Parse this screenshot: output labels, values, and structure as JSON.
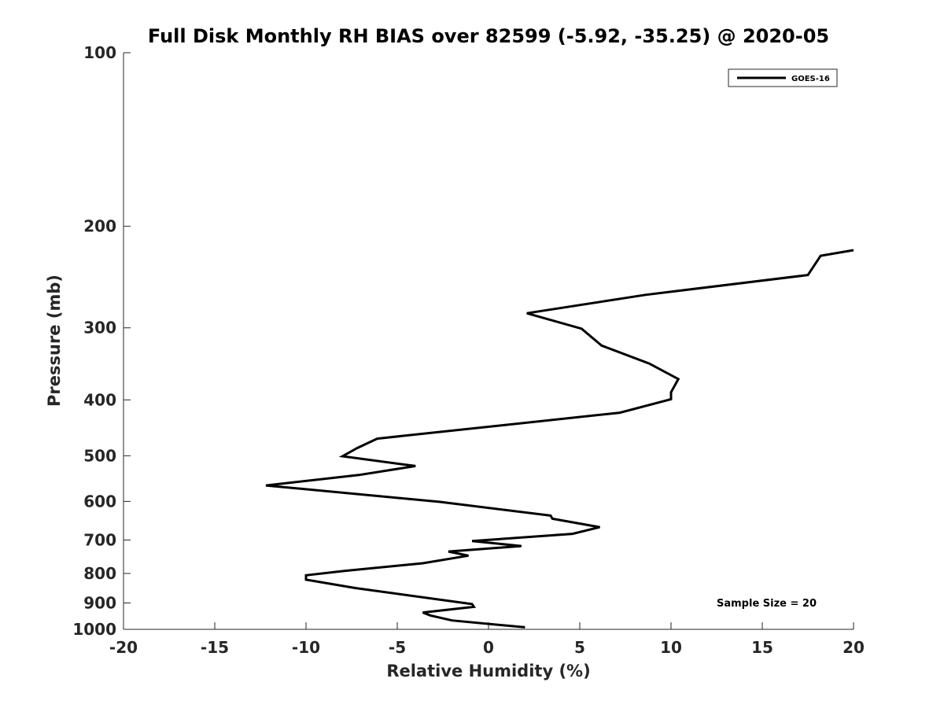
{
  "chart_data": {
    "type": "line",
    "title": "Full Disk Monthly RH BIAS over 82599 (-5.92, -35.25) @ 2020-05",
    "xlabel": "Relative Humidity (%)",
    "ylabel": "Pressure (mb)",
    "xlim": [
      -20,
      20
    ],
    "ylim": [
      100,
      1000
    ],
    "y_scale": "log",
    "y_reversed": true,
    "grid": false,
    "legend_position": "top-right",
    "x_ticks": [
      -20,
      -15,
      -10,
      -5,
      0,
      5,
      10,
      15,
      20
    ],
    "x_tick_labels": [
      "-20",
      "-15",
      "-10",
      "-5",
      "0",
      "5",
      "10",
      "15",
      "20"
    ],
    "y_ticks": [
      100,
      200,
      300,
      400,
      500,
      600,
      700,
      800,
      900,
      1000
    ],
    "y_tick_labels": [
      "100",
      "200",
      "300",
      "400",
      "500",
      "600",
      "700",
      "800",
      "900",
      "1000"
    ],
    "series": [
      {
        "name": "GOES-16",
        "color": "#000000",
        "x": [
          20.0,
          18.2,
          17.5,
          8.6,
          2.1,
          5.1,
          6.2,
          8.8,
          10.4,
          10.0,
          10.0,
          7.2,
          -6.1,
          -7.2,
          -8.0,
          -4.0,
          -7.1,
          -12.2,
          -2.7,
          3.4,
          3.5,
          6.1,
          4.6,
          -0.9,
          1.8,
          -2.2,
          -1.1,
          -3.6,
          -7.9,
          -10.0,
          -10.0,
          -7.3,
          -0.9,
          -0.8,
          -3.6,
          -3.2,
          -2.0,
          2.0
        ],
        "y": [
          220,
          225,
          243,
          263,
          283,
          301,
          322,
          346,
          368,
          388,
          399,
          421,
          467,
          485,
          501,
          521,
          540,
          563,
          601,
          635,
          643,
          665,
          683,
          703,
          717,
          733,
          745,
          768,
          792,
          806,
          820,
          848,
          904,
          914,
          935,
          946,
          965,
          992
        ]
      }
    ],
    "annotations": [
      "Sample Size = 20"
    ]
  }
}
